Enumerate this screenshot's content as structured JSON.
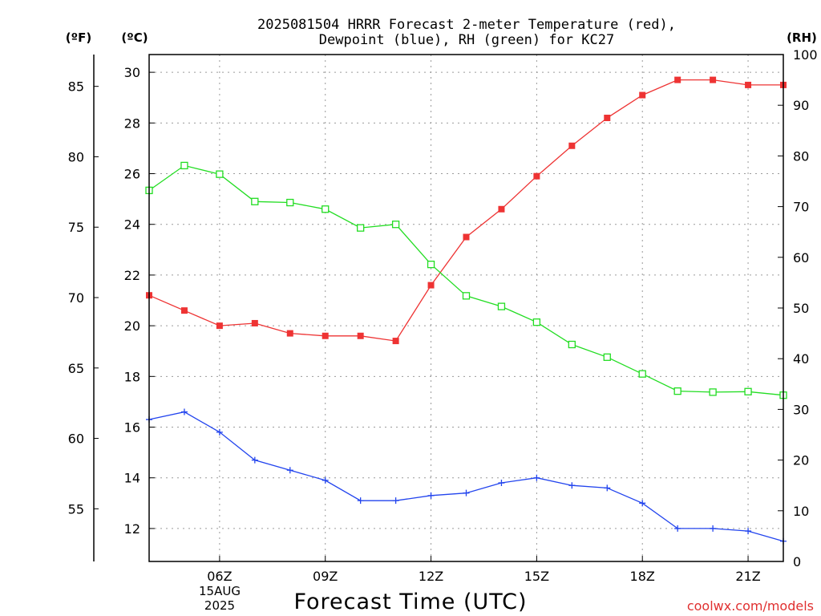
{
  "chart_data": {
    "type": "line",
    "title_line1": "2025081504 HRRR Forecast 2-meter Temperature (red),",
    "title_line2": "Dewpoint (blue), RH (green) for KC27",
    "xlabel": "Forecast Time (UTC)",
    "left_unit_f": "(ºF)",
    "left_unit_c": "(ºC)",
    "right_unit": "(RH)",
    "date_label": {
      "day": "15AUG",
      "year": "2025"
    },
    "credit": "coolwx.com/models",
    "x_hours": [
      4,
      5,
      6,
      7,
      8,
      9,
      10,
      11,
      12,
      13,
      14,
      15,
      16,
      17,
      18,
      19,
      20,
      21,
      22
    ],
    "xlim": [
      4,
      22
    ],
    "x_ticks": [
      {
        "hour": 6,
        "label": "06Z"
      },
      {
        "hour": 9,
        "label": "09Z"
      },
      {
        "hour": 12,
        "label": "12Z"
      },
      {
        "hour": 15,
        "label": "15Z"
      },
      {
        "hour": 18,
        "label": "18Z"
      },
      {
        "hour": 21,
        "label": "21Z"
      }
    ],
    "ylim_c": [
      10.7,
      30.7
    ],
    "yticks_c": [
      12,
      14,
      16,
      18,
      20,
      22,
      24,
      26,
      28,
      30
    ],
    "yticks_f": [
      55,
      60,
      65,
      70,
      75,
      80,
      85
    ],
    "ylim_rh": [
      0,
      100
    ],
    "yticks_rh": [
      0,
      10,
      20,
      30,
      40,
      50,
      60,
      70,
      80,
      90,
      100
    ],
    "grid": true,
    "series": [
      {
        "key": "temperature",
        "axis": "celsius",
        "color": "#ee3333",
        "marker": "filled-square",
        "values": [
          21.2,
          20.6,
          20.0,
          20.1,
          19.7,
          19.6,
          19.6,
          19.4,
          21.6,
          23.5,
          24.6,
          25.9,
          27.1,
          28.2,
          29.1,
          29.7,
          29.7,
          29.5,
          29.5
        ]
      },
      {
        "key": "dewpoint",
        "axis": "celsius",
        "color": "#2244ee",
        "marker": "plus",
        "values": [
          16.3,
          16.6,
          15.8,
          14.7,
          14.3,
          13.9,
          13.1,
          13.1,
          13.3,
          13.4,
          13.8,
          14.0,
          13.7,
          13.6,
          13.0,
          12.0,
          12.0,
          11.9,
          11.5
        ]
      },
      {
        "key": "rh",
        "axis": "rh",
        "color": "#22dd22",
        "marker": "open-square",
        "values": [
          73.2,
          78.1,
          76.4,
          71.0,
          70.8,
          69.5,
          65.8,
          66.5,
          58.6,
          52.4,
          50.3,
          47.2,
          42.8,
          40.3,
          37.0,
          33.6,
          33.4,
          33.5,
          32.8
        ]
      }
    ]
  }
}
